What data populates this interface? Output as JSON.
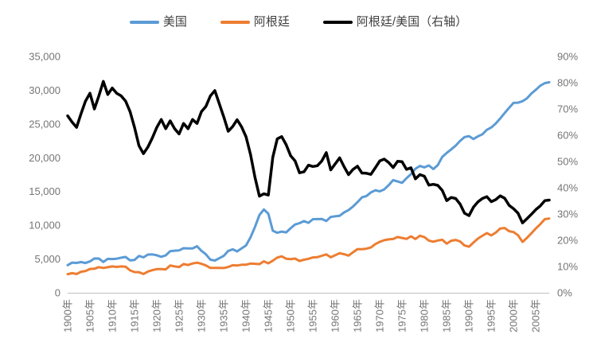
{
  "chart": {
    "legend": [
      {
        "label": "美国",
        "color": "#5B9BD5"
      },
      {
        "label": "阿根廷",
        "color": "#ED7D31"
      },
      {
        "label": "阿根廷/美国（右轴）",
        "color": "#000000"
      }
    ],
    "left_axis_ticks": [
      "0",
      "5,000",
      "10,000",
      "15,000",
      "20,000",
      "25,000",
      "30,000",
      "35,000"
    ],
    "right_axis_ticks": [
      "0%",
      "10%",
      "20%",
      "30%",
      "40%",
      "50%",
      "60%",
      "70%",
      "80%",
      "90%"
    ],
    "x_axis_ticks": [
      "1900年",
      "1905年",
      "1910年",
      "1915年",
      "1920年",
      "1925年",
      "1930年",
      "1935年",
      "1940年",
      "1945年",
      "1950年",
      "1955年",
      "1960年",
      "1965年",
      "1970年",
      "1975年",
      "1980年",
      "1985年",
      "1990年",
      "1995年",
      "2000年",
      "2005年"
    ],
    "x_axis_tick_years": [
      1900,
      1905,
      1910,
      1915,
      1920,
      1925,
      1930,
      1935,
      1940,
      1945,
      1950,
      1955,
      1960,
      1965,
      1970,
      1975,
      1980,
      1985,
      1990,
      1995,
      2000,
      2005
    ],
    "axis_line_color": "#BFBFBF",
    "tick_text_color": "#757575"
  },
  "chart_data": {
    "type": "line",
    "title": "",
    "xlabel": "",
    "ylabel_left": "",
    "ylabel_right": "",
    "grid": false,
    "legend_position": "top",
    "left_ylim": [
      0,
      35000
    ],
    "right_ylim": [
      0,
      90
    ],
    "x": [
      1900,
      1901,
      1902,
      1903,
      1904,
      1905,
      1906,
      1907,
      1908,
      1909,
      1910,
      1911,
      1912,
      1913,
      1914,
      1915,
      1916,
      1917,
      1918,
      1919,
      1920,
      1921,
      1922,
      1923,
      1924,
      1925,
      1926,
      1927,
      1928,
      1929,
      1930,
      1931,
      1932,
      1933,
      1934,
      1935,
      1936,
      1937,
      1938,
      1939,
      1940,
      1941,
      1942,
      1943,
      1944,
      1945,
      1946,
      1947,
      1948,
      1949,
      1950,
      1951,
      1952,
      1953,
      1954,
      1955,
      1956,
      1957,
      1958,
      1959,
      1960,
      1961,
      1962,
      1963,
      1964,
      1965,
      1966,
      1967,
      1968,
      1969,
      1970,
      1971,
      1972,
      1973,
      1974,
      1975,
      1976,
      1977,
      1978,
      1979,
      1980,
      1981,
      1982,
      1983,
      1984,
      1985,
      1986,
      1987,
      1988,
      1989,
      1990,
      1991,
      1992,
      1993,
      1994,
      1995,
      1996,
      1997,
      1998,
      1999,
      2000,
      2001,
      2002,
      2003,
      2004,
      2005,
      2006,
      2007,
      2008
    ],
    "series": [
      {
        "name": "美国",
        "color": "#5B9BD5",
        "axis": "left",
        "stroke_width": 3,
        "values": [
          4091,
          4464,
          4421,
          4551,
          4410,
          4642,
          5079,
          5065,
          4561,
          5017,
          5002,
          5046,
          5201,
          5301,
          4799,
          4864,
          5459,
          5248,
          5659,
          5680,
          5552,
          5323,
          5540,
          6164,
          6233,
          6282,
          6602,
          6576,
          6569,
          6899,
          6213,
          5691,
          4908,
          4777,
          5114,
          5467,
          6204,
          6430,
          6126,
          6561,
          7010,
          8206,
          9741,
          11518,
          12333,
          11709,
          9197,
          8886,
          9065,
          8944,
          9561,
          10116,
          10316,
          10613,
          10359,
          10897,
          10914,
          10920,
          10631,
          11230,
          11328,
          11402,
          11905,
          12242,
          12773,
          13419,
          14134,
          14330,
          14863,
          15179,
          15030,
          15304,
          15944,
          16689,
          16491,
          16284,
          16975,
          17567,
          18373,
          18789,
          18577,
          18856,
          18325,
          18920,
          20123,
          20717,
          21236,
          21788,
          22499,
          23059,
          23201,
          22785,
          23169,
          23477,
          24130,
          24484,
          25066,
          25819,
          26619,
          27395,
          28129,
          28148,
          28376,
          28805,
          29515,
          30071,
          30672,
          31049,
          31178
        ]
      },
      {
        "name": "阿根廷",
        "color": "#ED7D31",
        "axis": "left",
        "stroke_width": 3,
        "values": [
          2756,
          2902,
          2785,
          3106,
          3219,
          3528,
          3556,
          3799,
          3672,
          3788,
          3902,
          3835,
          3901,
          3870,
          3311,
          3064,
          3057,
          2781,
          3141,
          3351,
          3498,
          3513,
          3463,
          4037,
          3896,
          3801,
          4258,
          4110,
          4336,
          4450,
          4287,
          4041,
          3681,
          3678,
          3682,
          3663,
          3818,
          4072,
          4037,
          4148,
          4161,
          4326,
          4284,
          4240,
          4650,
          4356,
          4748,
          5210,
          5396,
          5047,
          4987,
          5073,
          4717,
          4891,
          5036,
          5237,
          5281,
          5478,
          5681,
          5253,
          5559,
          5859,
          5720,
          5505,
          6003,
          6471,
          6441,
          6527,
          6710,
          7218,
          7540,
          7794,
          7902,
          7962,
          8258,
          8122,
          7978,
          8360,
          7972,
          8450,
          8245,
          7735,
          7560,
          7740,
          7851,
          7268,
          7709,
          7830,
          7601,
          6998,
          6823,
          7434,
          8025,
          8432,
          8837,
          8495,
          8905,
          9527,
          9595,
          9126,
          8996,
          8520,
          7536,
          8136,
          8818,
          9538,
          10161,
          10902,
          10995
        ]
      },
      {
        "name": "阿根廷/美国（右轴）",
        "color": "#000000",
        "axis": "right",
        "unit": "%",
        "stroke_width": 3.5,
        "values": [
          67.4,
          65.0,
          63.0,
          68.2,
          73.0,
          76.0,
          70.0,
          75.0,
          80.5,
          75.5,
          78.0,
          76.0,
          75.0,
          73.0,
          69.0,
          63.0,
          56.0,
          53.0,
          55.5,
          59.0,
          63.0,
          66.0,
          62.5,
          65.5,
          62.5,
          60.5,
          64.5,
          62.5,
          66.0,
          64.5,
          69.0,
          71.0,
          75.0,
          77.0,
          72.0,
          67.0,
          61.5,
          63.3,
          65.9,
          63.2,
          59.4,
          52.7,
          44.0,
          36.8,
          37.7,
          37.2,
          51.6,
          58.6,
          59.5,
          56.4,
          52.2,
          50.2,
          45.7,
          46.1,
          48.6,
          48.1,
          48.4,
          50.2,
          53.4,
          46.8,
          49.1,
          51.4,
          48.0,
          45.0,
          47.0,
          48.2,
          45.6,
          45.5,
          45.1,
          47.6,
          50.2,
          50.9,
          49.6,
          47.7,
          50.1,
          49.9,
          47.0,
          47.6,
          43.4,
          45.0,
          44.4,
          41.0,
          41.3,
          40.9,
          39.0,
          35.1,
          36.3,
          35.9,
          33.8,
          30.3,
          29.4,
          32.6,
          34.6,
          35.9,
          36.6,
          34.7,
          35.5,
          36.9,
          36.0,
          33.3,
          32.0,
          30.3,
          26.6,
          28.2,
          29.9,
          31.7,
          33.1,
          35.1,
          35.3
        ]
      }
    ]
  }
}
